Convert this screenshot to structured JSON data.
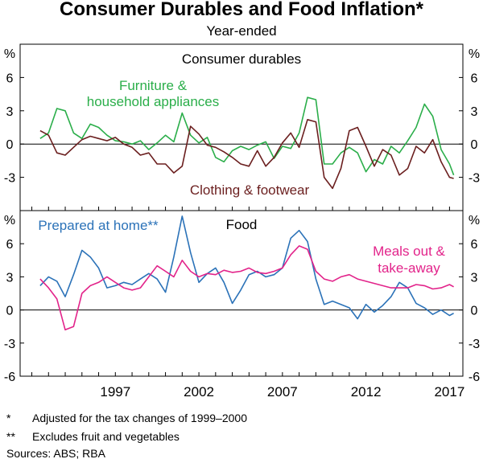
{
  "title": "Consumer Durables and Food Inflation*",
  "subtitle": "Year-ended",
  "unit": "%",
  "notes": [
    {
      "mark": "*",
      "text": "Adjusted for the tax changes of 1999–2000"
    },
    {
      "mark": "**",
      "text": "Excludes fruit and vegetables"
    }
  ],
  "sources": "Sources: ABS; RBA",
  "colors": {
    "green": "#2bae4a",
    "brown": "#6b1f1f",
    "blue": "#2b72b8",
    "pink": "#e2238a"
  },
  "chart_data": [
    {
      "type": "line",
      "panel_title": "Consumer durables",
      "ylim": [
        -6,
        9
      ],
      "yticks": [
        -3,
        0,
        3,
        6
      ],
      "x_ticks": [
        1997,
        2002,
        2007,
        2012,
        2017
      ],
      "grid": false,
      "series": [
        {
          "name": "Furniture & household appliances",
          "label_lines": [
            "Furniture &",
            "household appliances"
          ],
          "color": "green",
          "x": [
            1992.5,
            1993,
            1993.5,
            1994,
            1994.5,
            1995,
            1995.5,
            1996,
            1996.5,
            1997,
            1997.5,
            1998,
            1998.5,
            1999,
            1999.5,
            2000,
            2000.5,
            2001,
            2001.5,
            2002,
            2002.5,
            2003,
            2003.5,
            2004,
            2004.5,
            2005,
            2005.5,
            2006,
            2006.5,
            2007,
            2007.5,
            2008,
            2008.5,
            2009,
            2009.5,
            2010,
            2010.5,
            2011,
            2011.5,
            2012,
            2012.5,
            2013,
            2013.5,
            2014,
            2014.5,
            2015,
            2015.5,
            2016,
            2016.5,
            2017,
            2017.25
          ],
          "y": [
            0.5,
            1.0,
            3.2,
            3.0,
            1.0,
            0.5,
            1.8,
            1.5,
            0.8,
            0.3,
            0.2,
            0.0,
            0.3,
            -0.5,
            0.1,
            0.8,
            0.2,
            2.8,
            0.8,
            0.1,
            0.6,
            -1.2,
            -1.6,
            -0.6,
            -0.2,
            -0.5,
            -0.1,
            0.2,
            -1.3,
            -0.2,
            -0.4,
            1.0,
            4.2,
            4.0,
            -1.8,
            -1.8,
            -0.8,
            -0.3,
            -0.8,
            -2.5,
            -1.4,
            -1.8,
            -0.2,
            -0.8,
            0.3,
            1.5,
            3.6,
            2.5,
            -0.5,
            -1.8,
            -2.8
          ]
        },
        {
          "name": "Clothing & footwear",
          "label_lines": [
            "Clothing & footwear"
          ],
          "color": "brown",
          "x": [
            1992.5,
            1993,
            1993.5,
            1994,
            1994.5,
            1995,
            1995.5,
            1996,
            1996.5,
            1997,
            1997.5,
            1998,
            1998.5,
            1999,
            1999.5,
            2000,
            2000.5,
            2001,
            2001.5,
            2002,
            2002.5,
            2003,
            2003.5,
            2004,
            2004.5,
            2005,
            2005.5,
            2006,
            2006.5,
            2007,
            2007.5,
            2008,
            2008.5,
            2009,
            2009.5,
            2010,
            2010.5,
            2011,
            2011.5,
            2012,
            2012.5,
            2013,
            2013.5,
            2014,
            2014.5,
            2015,
            2015.5,
            2016,
            2016.5,
            2017,
            2017.25
          ],
          "y": [
            1.2,
            0.8,
            -0.8,
            -1.0,
            -0.3,
            0.4,
            0.7,
            0.5,
            0.3,
            0.6,
            0.0,
            -0.3,
            -1.0,
            -0.8,
            -1.8,
            -1.8,
            -2.6,
            -2.0,
            1.6,
            0.9,
            -0.1,
            -0.3,
            -0.7,
            -1.2,
            -1.8,
            -2.0,
            -0.6,
            -2.0,
            -1.2,
            0.1,
            1.0,
            -0.3,
            2.2,
            2.0,
            -3.0,
            -4.0,
            -2.2,
            1.2,
            1.5,
            -0.2,
            -2.0,
            -0.5,
            -1.0,
            -2.8,
            -2.2,
            -0.2,
            -0.8,
            0.4,
            -1.6,
            -3.0,
            -3.1
          ]
        }
      ]
    },
    {
      "type": "line",
      "panel_title": "Food",
      "ylim": [
        -6,
        9
      ],
      "yticks": [
        -6,
        -3,
        0,
        3,
        6
      ],
      "x_ticks": [
        1997,
        2002,
        2007,
        2012,
        2017
      ],
      "grid": false,
      "series": [
        {
          "name": "Prepared at home**",
          "label_lines": [
            "Prepared at home**"
          ],
          "color": "blue",
          "x": [
            1992.5,
            1993,
            1993.5,
            1994,
            1994.5,
            1995,
            1995.5,
            1996,
            1996.5,
            1997,
            1997.5,
            1998,
            1998.5,
            1999,
            1999.5,
            2000,
            2000.5,
            2001,
            2001.5,
            2002,
            2002.5,
            2003,
            2003.5,
            2004,
            2004.5,
            2005,
            2005.5,
            2006,
            2006.5,
            2007,
            2007.5,
            2008,
            2008.5,
            2009,
            2009.5,
            2010,
            2010.5,
            2011,
            2011.5,
            2012,
            2012.5,
            2013,
            2013.5,
            2014,
            2014.5,
            2015,
            2015.5,
            2016,
            2016.5,
            2017,
            2017.25
          ],
          "y": [
            2.2,
            3.0,
            2.6,
            1.2,
            3.2,
            5.4,
            4.8,
            3.8,
            2.0,
            2.2,
            2.5,
            2.3,
            2.8,
            3.3,
            2.8,
            1.6,
            4.8,
            8.5,
            5.2,
            2.5,
            3.3,
            3.8,
            2.5,
            0.6,
            1.8,
            3.2,
            3.5,
            3.0,
            3.2,
            3.8,
            6.5,
            7.2,
            6.2,
            2.8,
            0.5,
            0.8,
            0.5,
            0.2,
            -0.8,
            0.5,
            -0.2,
            0.4,
            1.2,
            2.5,
            2.0,
            0.6,
            0.2,
            -0.4,
            0.0,
            -0.5,
            -0.3
          ]
        },
        {
          "name": "Meals out & take-away",
          "label_lines": [
            "Meals out &",
            "take-away"
          ],
          "color": "pink",
          "x": [
            1992.5,
            1993,
            1993.5,
            1994,
            1994.5,
            1995,
            1995.5,
            1996,
            1996.5,
            1997,
            1997.5,
            1998,
            1998.5,
            1999,
            1999.5,
            2000,
            2000.5,
            2001,
            2001.5,
            2002,
            2002.5,
            2003,
            2003.5,
            2004,
            2004.5,
            2005,
            2005.5,
            2006,
            2006.5,
            2007,
            2007.5,
            2008,
            2008.5,
            2009,
            2009.5,
            2010,
            2010.5,
            2011,
            2011.5,
            2012,
            2012.5,
            2013,
            2013.5,
            2014,
            2014.5,
            2015,
            2015.5,
            2016,
            2016.5,
            2017,
            2017.25
          ],
          "y": [
            2.8,
            2.0,
            1.0,
            -1.8,
            -1.5,
            1.5,
            2.2,
            2.5,
            3.0,
            2.5,
            2.0,
            1.8,
            2.0,
            3.0,
            4.0,
            3.5,
            3.0,
            4.5,
            3.5,
            3.0,
            3.3,
            3.2,
            3.6,
            3.4,
            3.5,
            3.8,
            3.4,
            3.3,
            3.5,
            3.8,
            5.0,
            5.8,
            5.5,
            3.5,
            2.8,
            2.6,
            3.0,
            3.2,
            2.8,
            2.6,
            2.4,
            2.2,
            2.0,
            2.0,
            2.0,
            2.3,
            2.2,
            1.9,
            2.0,
            2.3,
            2.1
          ]
        }
      ]
    }
  ]
}
